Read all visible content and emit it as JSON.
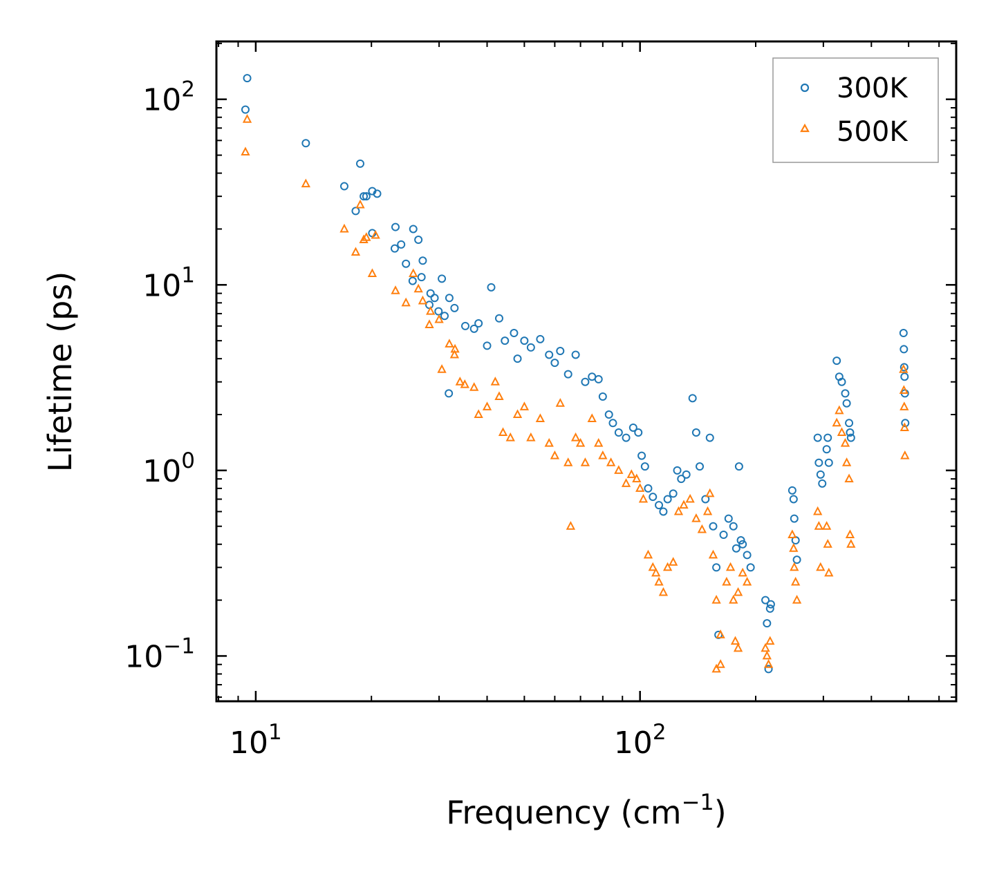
{
  "chart_data": {
    "type": "scatter",
    "title": "",
    "xlabel": "Frequency (cm−1)",
    "xlabel_base": "Frequency (cm",
    "xlabel_exp": "−1",
    "xlabel_close": ")",
    "ylabel": "Lifetime (ps)",
    "xscale": "log",
    "yscale": "log",
    "xlim": [
      7.9,
      665
    ],
    "ylim": [
      0.057,
      205
    ],
    "grid": false,
    "legend_position": "top-right",
    "x_ticks": [
      {
        "value": 10,
        "base": "10",
        "exp": "1"
      },
      {
        "value": 100,
        "base": "10",
        "exp": "2"
      }
    ],
    "y_ticks": [
      {
        "value": 0.1,
        "base": "10",
        "exp": "−1"
      },
      {
        "value": 1,
        "base": "10",
        "exp": "0"
      },
      {
        "value": 10,
        "base": "10",
        "exp": "1"
      },
      {
        "value": 100,
        "base": "10",
        "exp": "2"
      }
    ],
    "series": [
      {
        "name": "300K",
        "color": "#1f77b4",
        "marker": "circle",
        "points": [
          [
            9.5,
            130
          ],
          [
            9.4,
            88
          ],
          [
            13.5,
            58
          ],
          [
            17,
            34
          ],
          [
            18.2,
            25
          ],
          [
            18.7,
            45
          ],
          [
            19.1,
            30
          ],
          [
            19.4,
            30
          ],
          [
            20.1,
            32
          ],
          [
            20.7,
            31
          ],
          [
            20.1,
            19
          ],
          [
            23.1,
            20.5
          ],
          [
            23.9,
            16.5
          ],
          [
            24.6,
            13
          ],
          [
            25.7,
            20
          ],
          [
            23,
            15.7
          ],
          [
            26.5,
            17.5
          ],
          [
            27.2,
            13.5
          ],
          [
            27,
            11
          ],
          [
            25.6,
            10.5
          ],
          [
            28.5,
            9
          ],
          [
            29.2,
            8.5
          ],
          [
            30.5,
            10.8
          ],
          [
            29.9,
            7.2
          ],
          [
            28.3,
            7.8
          ],
          [
            31.9,
            8.5
          ],
          [
            32.9,
            7.5
          ],
          [
            31,
            6.8
          ],
          [
            31.8,
            2.6
          ],
          [
            35.1,
            6
          ],
          [
            37,
            5.8
          ],
          [
            38,
            6.2
          ],
          [
            40,
            4.7
          ],
          [
            41,
            9.7
          ],
          [
            43,
            6.6
          ],
          [
            44.5,
            5
          ],
          [
            47,
            5.5
          ],
          [
            48,
            4
          ],
          [
            50,
            5
          ],
          [
            52,
            4.6
          ],
          [
            55,
            5.1
          ],
          [
            58,
            4.2
          ],
          [
            60,
            3.8
          ],
          [
            62,
            4.4
          ],
          [
            65,
            3.3
          ],
          [
            68,
            4.2
          ],
          [
            72,
            3
          ],
          [
            75,
            3.2
          ],
          [
            78,
            3.1
          ],
          [
            80,
            2.5
          ],
          [
            83,
            2
          ],
          [
            85,
            1.8
          ],
          [
            88,
            1.6
          ],
          [
            92,
            1.5
          ],
          [
            96,
            1.7
          ],
          [
            99,
            1.6
          ],
          [
            101,
            1.2
          ],
          [
            103,
            1.05
          ],
          [
            105,
            0.8
          ],
          [
            108,
            0.72
          ],
          [
            112,
            0.65
          ],
          [
            115,
            0.6
          ],
          [
            118,
            0.7
          ],
          [
            122,
            0.75
          ],
          [
            125,
            1
          ],
          [
            128,
            0.9
          ],
          [
            132,
            0.95
          ],
          [
            137,
            2.45
          ],
          [
            140,
            1.6
          ],
          [
            143,
            1.05
          ],
          [
            148,
            0.7
          ],
          [
            152,
            1.5
          ],
          [
            155,
            0.5
          ],
          [
            158,
            0.3
          ],
          [
            160,
            0.13
          ],
          [
            165,
            0.45
          ],
          [
            170,
            0.55
          ],
          [
            175,
            0.5
          ],
          [
            178,
            0.38
          ],
          [
            181,
            1.05
          ],
          [
            183,
            0.42
          ],
          [
            185,
            0.4
          ],
          [
            190,
            0.35
          ],
          [
            194,
            0.3
          ],
          [
            212,
            0.2
          ],
          [
            214,
            0.15
          ],
          [
            216,
            0.085
          ],
          [
            218,
            0.18
          ],
          [
            219,
            0.19
          ],
          [
            249,
            0.78
          ],
          [
            251,
            0.7
          ],
          [
            252,
            0.55
          ],
          [
            254,
            0.42
          ],
          [
            256,
            0.33
          ],
          [
            290,
            1.5
          ],
          [
            292,
            1.1
          ],
          [
            295,
            0.95
          ],
          [
            298,
            0.85
          ],
          [
            306,
            1.3
          ],
          [
            308,
            1.5
          ],
          [
            310,
            1.1
          ],
          [
            325,
            3.9
          ],
          [
            330,
            3.2
          ],
          [
            335,
            3
          ],
          [
            342,
            2.6
          ],
          [
            345,
            2.3
          ],
          [
            350,
            1.8
          ],
          [
            352,
            1.6
          ],
          [
            354,
            1.5
          ],
          [
            485,
            5.5
          ],
          [
            486,
            4.5
          ],
          [
            487,
            3.6
          ],
          [
            488,
            3.2
          ],
          [
            489,
            2.6
          ],
          [
            490,
            1.8
          ]
        ]
      },
      {
        "name": "500K",
        "color": "#ff7f0e",
        "marker": "triangle",
        "points": [
          [
            9.5,
            78
          ],
          [
            9.4,
            52
          ],
          [
            13.5,
            35
          ],
          [
            17,
            20
          ],
          [
            18.2,
            15
          ],
          [
            18.7,
            27
          ],
          [
            19.1,
            17.5
          ],
          [
            19.4,
            18
          ],
          [
            20.1,
            11.5
          ],
          [
            20.5,
            18.5
          ],
          [
            23.1,
            9.3
          ],
          [
            24.6,
            8
          ],
          [
            25.7,
            11.5
          ],
          [
            26.5,
            9.5
          ],
          [
            27.2,
            8.2
          ],
          [
            28.3,
            6.1
          ],
          [
            28.5,
            7.2
          ],
          [
            30,
            6.5
          ],
          [
            31.9,
            4.8
          ],
          [
            33,
            4.5
          ],
          [
            30.5,
            3.5
          ],
          [
            32.9,
            4.2
          ],
          [
            34,
            3
          ],
          [
            35,
            2.9
          ],
          [
            37,
            2.8
          ],
          [
            38,
            2
          ],
          [
            40,
            2.2
          ],
          [
            42,
            3
          ],
          [
            43,
            2.5
          ],
          [
            44,
            1.6
          ],
          [
            46,
            1.5
          ],
          [
            48,
            2
          ],
          [
            50,
            2.2
          ],
          [
            52,
            1.5
          ],
          [
            55,
            1.9
          ],
          [
            58,
            1.4
          ],
          [
            60,
            1.2
          ],
          [
            62,
            2.3
          ],
          [
            65,
            1.1
          ],
          [
            66,
            0.5
          ],
          [
            68,
            1.5
          ],
          [
            70,
            1.4
          ],
          [
            72,
            1.1
          ],
          [
            75,
            1.9
          ],
          [
            78,
            1.4
          ],
          [
            80,
            1.2
          ],
          [
            84,
            1.1
          ],
          [
            88,
            1
          ],
          [
            92,
            0.85
          ],
          [
            95,
            0.95
          ],
          [
            98,
            0.9
          ],
          [
            100,
            0.8
          ],
          [
            102,
            0.7
          ],
          [
            105,
            0.35
          ],
          [
            108,
            0.3
          ],
          [
            110,
            0.28
          ],
          [
            112,
            0.25
          ],
          [
            115,
            0.22
          ],
          [
            118,
            0.3
          ],
          [
            122,
            0.32
          ],
          [
            126,
            0.6
          ],
          [
            130,
            0.65
          ],
          [
            135,
            0.7
          ],
          [
            140,
            0.55
          ],
          [
            145,
            0.48
          ],
          [
            150,
            0.6
          ],
          [
            152,
            0.75
          ],
          [
            155,
            0.35
          ],
          [
            158,
            0.2
          ],
          [
            162,
            0.13
          ],
          [
            168,
            0.25
          ],
          [
            172,
            0.3
          ],
          [
            175,
            0.2
          ],
          [
            180,
            0.22
          ],
          [
            185,
            0.28
          ],
          [
            190,
            0.25
          ],
          [
            158,
            0.085
          ],
          [
            162,
            0.09
          ],
          [
            177,
            0.12
          ],
          [
            180,
            0.11
          ],
          [
            212,
            0.11
          ],
          [
            214,
            0.1
          ],
          [
            216,
            0.09
          ],
          [
            218,
            0.12
          ],
          [
            249,
            0.45
          ],
          [
            251,
            0.38
          ],
          [
            252,
            0.3
          ],
          [
            254,
            0.25
          ],
          [
            256,
            0.2
          ],
          [
            290,
            0.6
          ],
          [
            292,
            0.5
          ],
          [
            295,
            0.3
          ],
          [
            306,
            0.5
          ],
          [
            308,
            0.4
          ],
          [
            310,
            0.28
          ],
          [
            325,
            1.8
          ],
          [
            330,
            2.1
          ],
          [
            335,
            1.6
          ],
          [
            342,
            1.4
          ],
          [
            345,
            1.1
          ],
          [
            350,
            0.9
          ],
          [
            352,
            0.45
          ],
          [
            354,
            0.4
          ],
          [
            485,
            3.5
          ],
          [
            486,
            2.7
          ],
          [
            487,
            2.2
          ],
          [
            488,
            1.7
          ],
          [
            489,
            1.2
          ]
        ]
      }
    ]
  }
}
